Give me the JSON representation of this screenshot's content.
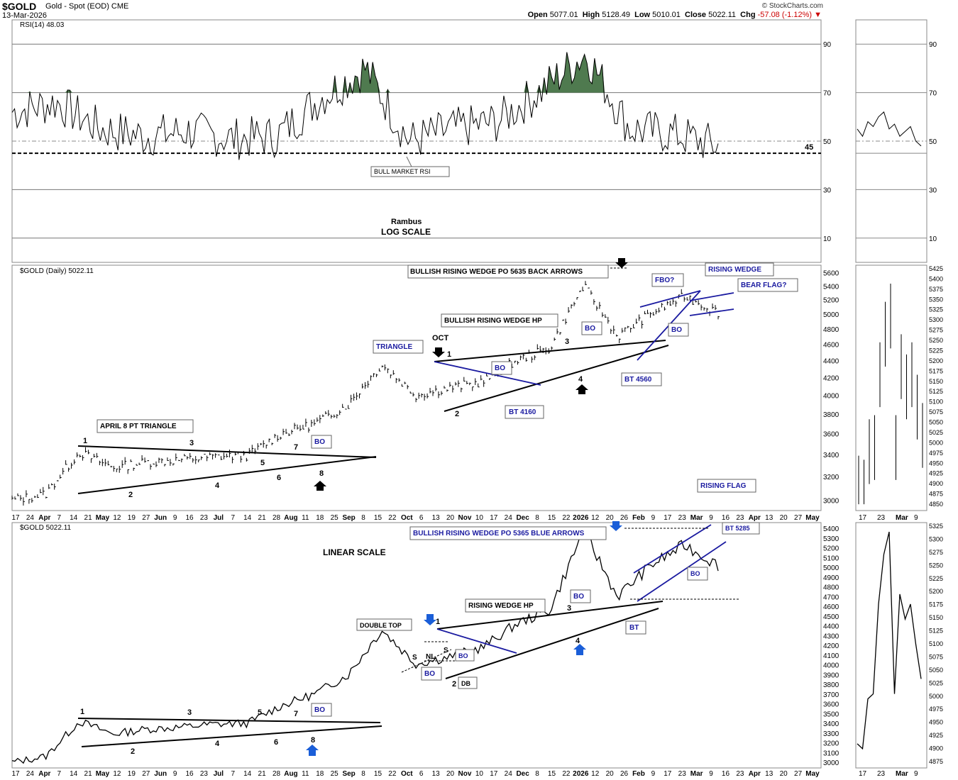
{
  "header": {
    "symbol": "$GOLD",
    "name": "Gold - Spot (EOD)",
    "exchange": "CME",
    "date": "13-Mar-2026",
    "brand": "© StockCharts.com",
    "open_label": "Open",
    "open": "5077.01",
    "high_label": "High",
    "high": "5128.49",
    "low_label": "Low",
    "low": "5010.01",
    "close_label": "Close",
    "close": "5022.11",
    "chg_label": "Chg",
    "chg": "-57.08 (-1.12%)"
  },
  "colors": {
    "rsi_fill": "#4f7a4f",
    "annotation_blue": "#1a1aa0",
    "grid": "#999999",
    "background": "#ffffff"
  },
  "rsi_panel": {
    "label": "RSI(14) 48.03",
    "ticks": [
      "90",
      "70",
      "50",
      "30",
      "10"
    ],
    "level_label": "45",
    "bull_label": "BULL MARKET RSI",
    "author": "Rambus",
    "scale_note": "LOG SCALE"
  },
  "log_panel": {
    "label": "$GOLD (Daily) 5022.11",
    "ticks": [
      "5600",
      "5400",
      "5200",
      "5000",
      "4800",
      "4600",
      "4400",
      "4200",
      "4000",
      "3800",
      "3600",
      "3400",
      "3200",
      "3000"
    ],
    "zoom_ticks": [
      "5425",
      "5400",
      "5375",
      "5350",
      "5325",
      "5300",
      "5275",
      "5250",
      "5225",
      "5200",
      "5175",
      "5150",
      "5125",
      "5100",
      "5075",
      "5050",
      "5025",
      "5000",
      "4975",
      "4950",
      "4925",
      "4900",
      "4875",
      "4850"
    ],
    "annotations": {
      "wedge_po": "BULLISH RISING WEDGE PO 5635 BACK  ARROWS",
      "wedge_hp": "BULLISH RISING WEDGE HP",
      "triangle": "TRIANGLE",
      "oct": "OCT",
      "april_triangle": "APRIL 8 PT TRIANGLE",
      "bo": "BO",
      "bt4160": "BT 4160",
      "bt4560": "BT 4560",
      "fbo": "FBO?",
      "rising_wedge": "RISING WEDGE",
      "bear_flag": "BEAR FLAG?"
    }
  },
  "linear_panel": {
    "label": "$GOLD 5022.11",
    "scale_note": "LINEAR SCALE",
    "ticks": [
      "5400",
      "5300",
      "5200",
      "5100",
      "5000",
      "4900",
      "4800",
      "4700",
      "4600",
      "4500",
      "4400",
      "4300",
      "4200",
      "4100",
      "4000",
      "3900",
      "3800",
      "3700",
      "3600",
      "3500",
      "3400",
      "3300",
      "3200",
      "3100",
      "3000"
    ],
    "zoom_ticks": [
      "5325",
      "5300",
      "5275",
      "5250",
      "5225",
      "5200",
      "5175",
      "5150",
      "5125",
      "5100",
      "5075",
      "5050",
      "5025",
      "5000",
      "4975",
      "4950",
      "4925",
      "4900",
      "4875"
    ],
    "annotations": {
      "wedge_po": "BULLISH RISING WEDGE PO 5365 BLUE ARROWS",
      "rising_flag": "RISING FLAG",
      "bt5285": "BT 5285",
      "rising_wedge_hp": "RISING WEDGE HP",
      "double_top": "DOUBLE TOP",
      "bo": "BO",
      "bt": "BT",
      "db": "DB",
      "nl": "NL",
      "s": "S"
    }
  },
  "x_axis": {
    "labels": [
      "17",
      "24",
      "Apr",
      "7",
      "14",
      "21",
      "May",
      "12",
      "19",
      "27",
      "Jun",
      "9",
      "16",
      "23",
      "Jul",
      "7",
      "14",
      "21",
      "28",
      "Aug",
      "11",
      "18",
      "25",
      "Sep",
      "8",
      "15",
      "22",
      "Oct",
      "6",
      "13",
      "20",
      "Nov",
      "10",
      "17",
      "24",
      "Dec",
      "8",
      "15",
      "22",
      "2026",
      "12",
      "20",
      "26",
      "Feb",
      "9",
      "17",
      "23",
      "Mar",
      "9",
      "16",
      "23",
      "Apr",
      "13",
      "20",
      "27",
      "May"
    ],
    "zoom_labels": [
      "17",
      "23",
      "Mar",
      "9"
    ]
  },
  "chart_data": [
    {
      "type": "line",
      "title": "RSI(14) 48.03",
      "ylim": [
        0,
        100
      ],
      "reference_lines": [
        90,
        70,
        50,
        45,
        30,
        10
      ],
      "x": [
        "Mar-17",
        "Apr-7",
        "Apr-21",
        "May-12",
        "Jun-9",
        "Jul-7",
        "Aug-11",
        "Sep-8",
        "Oct-6",
        "Oct-20",
        "Nov-10",
        "Dec-8",
        "2026-Jan-12",
        "Jan-26",
        "Feb-9",
        "Mar-9",
        "Mar-13"
      ],
      "values": [
        62,
        66,
        55,
        52,
        54,
        51,
        52,
        68,
        80,
        50,
        55,
        58,
        71,
        86,
        55,
        53,
        48
      ]
    },
    {
      "type": "line",
      "title": "$GOLD (Daily) 5022.11",
      "scale": "log",
      "ylim": [
        2950,
        5650
      ],
      "x": [
        "Mar-17",
        "Apr-7",
        "Apr-21",
        "May-12",
        "Jun-9",
        "Jul-7",
        "Aug-11",
        "Aug-25",
        "Sep-8",
        "Sep-22",
        "Oct-6",
        "Oct-20",
        "Nov-3",
        "Nov-24",
        "Dec-8",
        "Dec-22",
        "2026-Jan-12",
        "Jan-26",
        "Feb-2",
        "Feb-16",
        "Mar-2",
        "Mar-13"
      ],
      "values": [
        3000,
        3050,
        3420,
        3280,
        3330,
        3350,
        3380,
        3390,
        3600,
        3700,
        3900,
        4350,
        4000,
        4080,
        4150,
        4400,
        4550,
        5400,
        4700,
        5000,
        5250,
        5022
      ]
    },
    {
      "type": "line",
      "title": "$GOLD 5022.11",
      "scale": "linear",
      "ylim": [
        3000,
        5400
      ],
      "x": [
        "Mar-17",
        "Apr-7",
        "Apr-21",
        "May-12",
        "Jun-9",
        "Jul-7",
        "Aug-11",
        "Aug-25",
        "Sep-8",
        "Sep-22",
        "Oct-6",
        "Oct-20",
        "Nov-3",
        "Nov-24",
        "Dec-8",
        "Dec-22",
        "2026-Jan-12",
        "Jan-26",
        "Feb-2",
        "Feb-16",
        "Mar-2",
        "Mar-13"
      ],
      "values": [
        3000,
        3060,
        3420,
        3290,
        3340,
        3360,
        3390,
        3400,
        3580,
        3700,
        3900,
        4360,
        4010,
        4080,
        4180,
        4420,
        4560,
        5380,
        4700,
        5020,
        5230,
        5022
      ]
    }
  ]
}
